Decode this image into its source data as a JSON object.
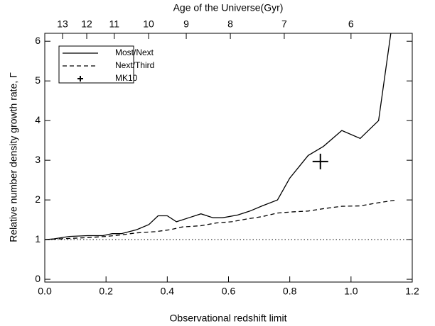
{
  "chart_data": {
    "type": "line",
    "title": "Age of the Universe(Gyr)",
    "x_label": "Observational redshift limit",
    "y_label": "Relative number density growth rate, Γ",
    "xlim": [
      0,
      1.2
    ],
    "ylim": [
      -0.07,
      6.2
    ],
    "xticks": [
      {
        "value": 0,
        "label": "0.0"
      },
      0.2,
      0.4,
      0.6,
      0.8,
      {
        "value": 1,
        "label": "1.0"
      },
      1.2
    ],
    "yticks": [
      0,
      1,
      2,
      3,
      4,
      5,
      6
    ],
    "x2ticks": [
      {
        "value": 0.058,
        "label": "13"
      },
      {
        "value": 0.137,
        "label": "12"
      },
      {
        "value": 0.227,
        "label": "11"
      },
      {
        "value": 0.339,
        "label": "10"
      },
      {
        "value": 0.462,
        "label": "9"
      },
      {
        "value": 0.606,
        "label": "8"
      },
      {
        "value": 0.782,
        "label": "7"
      },
      {
        "value": 1.0,
        "label": "6"
      }
    ],
    "reference_line": 1,
    "series": [
      {
        "name": "Most/Next",
        "style": "solid",
        "color": "#000000",
        "x": [
          0,
          0.03,
          0.08,
          0.14,
          0.19,
          0.22,
          0.25,
          0.3,
          0.34,
          0.37,
          0.4,
          0.43,
          0.47,
          0.51,
          0.55,
          0.58,
          0.63,
          0.67,
          0.71,
          0.76,
          0.8,
          0.86,
          0.91,
          0.97,
          1.03,
          1.09,
          1.13
        ],
        "values": [
          1.0,
          1.02,
          1.08,
          1.1,
          1.1,
          1.15,
          1.15,
          1.25,
          1.38,
          1.6,
          1.6,
          1.45,
          1.55,
          1.65,
          1.55,
          1.55,
          1.62,
          1.72,
          1.85,
          2.0,
          2.55,
          3.12,
          3.35,
          3.75,
          3.55,
          4.0,
          6.2
        ]
      },
      {
        "name": "Next/Third",
        "style": "dashed",
        "color": "#000000",
        "x": [
          0,
          0.08,
          0.14,
          0.2,
          0.25,
          0.3,
          0.36,
          0.41,
          0.45,
          0.51,
          0.56,
          0.61,
          0.66,
          0.71,
          0.76,
          0.81,
          0.86,
          0.91,
          0.97,
          1.03,
          1.09,
          1.15
        ],
        "values": [
          1.0,
          1.03,
          1.05,
          1.08,
          1.12,
          1.17,
          1.2,
          1.25,
          1.32,
          1.35,
          1.42,
          1.45,
          1.52,
          1.58,
          1.67,
          1.7,
          1.72,
          1.78,
          1.84,
          1.85,
          1.93,
          2.0
        ]
      },
      {
        "name": "MK10",
        "style": "plus",
        "color": "#000000",
        "x": [
          0.9
        ],
        "values": [
          2.97
        ]
      }
    ]
  }
}
